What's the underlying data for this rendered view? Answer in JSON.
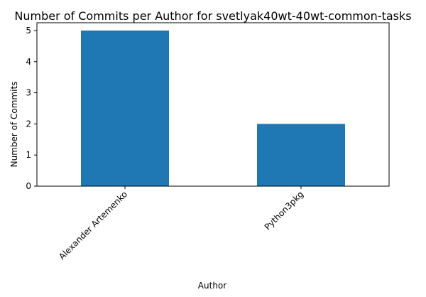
{
  "chart_data": {
    "type": "bar",
    "title": "Number of Commits per Author for svetlyak40wt-40wt-common-tasks",
    "xlabel": "Author",
    "ylabel": "Number of Commits",
    "categories": [
      "Alexander Artemenko",
      "Python3pkg"
    ],
    "values": [
      5,
      2
    ],
    "ylim": [
      0,
      5.25
    ],
    "yticks": [
      0,
      1,
      2,
      3,
      4,
      5
    ],
    "grid": false,
    "legend": "none",
    "bar_color": "#1f77b4"
  }
}
